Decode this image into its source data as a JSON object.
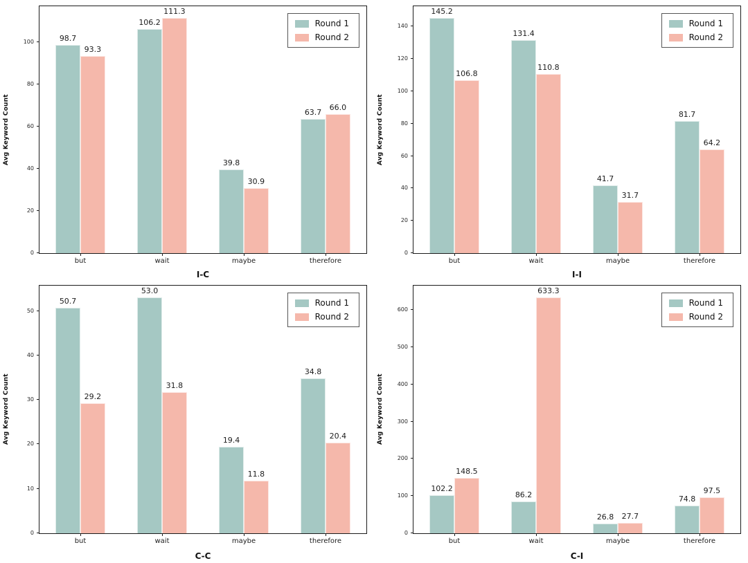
{
  "figure": {
    "background": "#ffffff",
    "series_colors": [
      "#a5c8c3",
      "#f5b8ab"
    ],
    "legend_labels": [
      "Round 1",
      "Round 2"
    ]
  },
  "chart_data": [
    {
      "type": "bar",
      "title": "I-C",
      "ylabel": "Avg Keyword Count",
      "categories": [
        "but",
        "wait",
        "maybe",
        "therefore"
      ],
      "series": [
        {
          "name": "Round 1",
          "values": [
            98.7,
            106.2,
            39.8,
            63.7
          ]
        },
        {
          "name": "Round 2",
          "values": [
            93.3,
            111.3,
            30.9,
            66.0
          ]
        }
      ],
      "ylim": [
        0,
        117
      ],
      "yticks": [
        0,
        20,
        40,
        60,
        80,
        100
      ],
      "legend_position": "upper right",
      "grid": false
    },
    {
      "type": "bar",
      "title": "I-I",
      "ylabel": "Avg Keyword Count",
      "categories": [
        "but",
        "wait",
        "maybe",
        "therefore"
      ],
      "series": [
        {
          "name": "Round 1",
          "values": [
            145.2,
            131.4,
            41.7,
            81.7
          ]
        },
        {
          "name": "Round 2",
          "values": [
            106.8,
            110.8,
            31.7,
            64.2
          ]
        }
      ],
      "ylim": [
        0,
        152.5
      ],
      "yticks": [
        0,
        20,
        40,
        60,
        80,
        100,
        120,
        140
      ],
      "legend_position": "upper right",
      "grid": false
    },
    {
      "type": "bar",
      "title": "C-C",
      "ylabel": "Avg Keyword Count",
      "categories": [
        "but",
        "wait",
        "maybe",
        "therefore"
      ],
      "series": [
        {
          "name": "Round 1",
          "values": [
            50.7,
            53.0,
            19.4,
            34.8
          ]
        },
        {
          "name": "Round 2",
          "values": [
            29.2,
            31.8,
            11.8,
            20.4
          ]
        }
      ],
      "ylim": [
        0,
        55.7
      ],
      "yticks": [
        0,
        10,
        20,
        30,
        40,
        50
      ],
      "legend_position": "upper right",
      "grid": false
    },
    {
      "type": "bar",
      "title": "C-I",
      "ylabel": "Avg Keyword Count",
      "categories": [
        "but",
        "wait",
        "maybe",
        "therefore"
      ],
      "series": [
        {
          "name": "Round 1",
          "values": [
            102.2,
            86.2,
            26.8,
            74.8
          ]
        },
        {
          "name": "Round 2",
          "values": [
            148.5,
            633.3,
            27.7,
            97.5
          ]
        }
      ],
      "ylim": [
        0,
        665
      ],
      "yticks": [
        0,
        100,
        200,
        300,
        400,
        500,
        600
      ],
      "legend_position": "upper right",
      "grid": false
    }
  ]
}
